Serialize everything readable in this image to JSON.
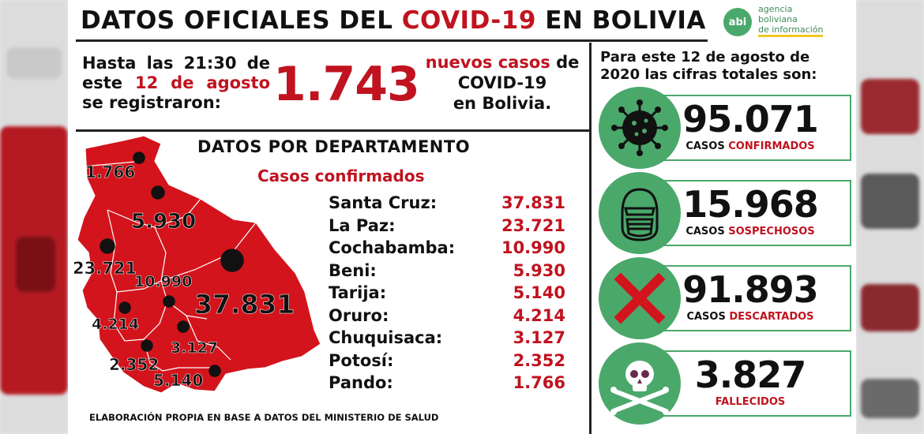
{
  "title": {
    "pre": "DATOS OFICIALES DEL",
    "highlight": "COVID-19",
    "post": "EN BOLIVIA"
  },
  "logo": {
    "mark": "abi",
    "line1": "agencia",
    "line2": "boliviana",
    "line3": "de información"
  },
  "intro": {
    "part1": "Hasta las 21:30 de este",
    "date": "12 de agosto",
    "part2": "se registraron:"
  },
  "new_cases": {
    "value": "1.743",
    "label_red": "nuevos casos",
    "label_rest1": "de",
    "label_rest2": "COVID-19",
    "label_rest3": "en Bolivia."
  },
  "departments": {
    "title": "DATOS POR DEPARTAMENTO",
    "subtitle": "Casos confirmados",
    "rows": [
      {
        "name": "Santa Cruz:",
        "value": "37.831"
      },
      {
        "name": "La Paz:",
        "value": "23.721"
      },
      {
        "name": "Cochabamba:",
        "value": "10.990"
      },
      {
        "name": "Beni:",
        "value": "5.930"
      },
      {
        "name": "Tarija:",
        "value": "5.140"
      },
      {
        "name": "Oruro:",
        "value": "4.214"
      },
      {
        "name": "Chuquisaca:",
        "value": "3.127"
      },
      {
        "name": "Potosí:",
        "value": "2.352"
      },
      {
        "name": "Pando:",
        "value": "1.766"
      }
    ]
  },
  "map_labels": {
    "pando": "1.766",
    "beni": "5.930",
    "la_paz": "23.721",
    "cochabamba": "10.990",
    "santa_cruz": "37.831",
    "oruro": "4.214",
    "chuquisaca": "3.127",
    "potosi": "2.352",
    "tarija": "5.140"
  },
  "footer": "ELABORACIÓN PROPIA EN BASE A DATOS DEL MINISTERIO DE SALUD",
  "totals": {
    "heading": "Para este 12 de agosto de 2020 las cifras totales son:",
    "confirmed": {
      "value": "95.071",
      "label_pre": "CASOS",
      "label_red": "CONFIRMADOS",
      "icon": "virus-icon"
    },
    "suspected": {
      "value": "15.968",
      "label_pre": "CASOS",
      "label_red": "SOSPECHOSOS",
      "icon": "masked-face-icon"
    },
    "discarded": {
      "value": "91.893",
      "label_pre": "CASOS",
      "label_red": "DESCARTADOS",
      "icon": "red-x-icon"
    },
    "deaths": {
      "value": "3.827",
      "label": "FALLECIDOS",
      "icon": "skull-crossbones-icon"
    }
  },
  "colors": {
    "red": "#c0131f",
    "green": "#4aa86b",
    "map_red": "#d3141c"
  }
}
